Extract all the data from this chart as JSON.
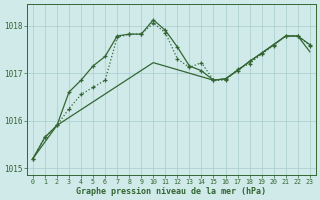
{
  "x_ticks": [
    0,
    1,
    2,
    3,
    4,
    5,
    6,
    7,
    8,
    9,
    10,
    11,
    12,
    13,
    14,
    15,
    16,
    17,
    18,
    19,
    20,
    21,
    22,
    23
  ],
  "series_dotted": {
    "x": [
      0,
      1,
      2,
      3,
      4,
      5,
      6,
      7,
      8,
      9,
      10,
      11,
      12,
      13,
      14,
      15,
      16,
      17,
      18,
      19,
      20,
      21,
      22,
      23
    ],
    "y": [
      1015.2,
      1015.65,
      1015.9,
      1016.25,
      1016.55,
      1016.7,
      1016.85,
      1017.75,
      1017.82,
      1017.82,
      1018.05,
      1017.85,
      1017.3,
      1017.12,
      1017.22,
      1016.85,
      1016.85,
      1017.08,
      1017.2,
      1017.4,
      1017.58,
      1017.78,
      1017.78,
      1017.58
    ]
  },
  "series_solid": {
    "x": [
      0,
      1,
      2,
      3,
      4,
      5,
      6,
      7,
      8,
      9,
      10,
      11,
      12,
      13,
      14,
      15,
      16,
      17,
      18,
      19,
      20,
      21,
      22,
      23
    ],
    "y": [
      1015.2,
      1015.65,
      1015.9,
      1016.6,
      1016.85,
      1017.15,
      1017.35,
      1017.78,
      1017.82,
      1017.82,
      1018.12,
      1017.9,
      1017.55,
      1017.15,
      1017.05,
      1016.85,
      1016.88,
      1017.05,
      1017.25,
      1017.42,
      1017.6,
      1017.78,
      1017.78,
      1017.6
    ]
  },
  "series_trend": {
    "x": [
      0,
      2,
      10,
      15,
      16,
      21,
      22,
      23
    ],
    "y": [
      1015.2,
      1015.9,
      1017.22,
      1016.85,
      1016.88,
      1017.78,
      1017.78,
      1017.45
    ]
  },
  "ylim": [
    1014.85,
    1018.45
  ],
  "yticks": [
    1015,
    1016,
    1017,
    1018
  ],
  "xlabel": "Graphe pression niveau de la mer (hPa)",
  "line_color": "#336633",
  "bg_color": "#d0eaea",
  "grid_color": "#a8cccc",
  "linewidth": 0.9
}
